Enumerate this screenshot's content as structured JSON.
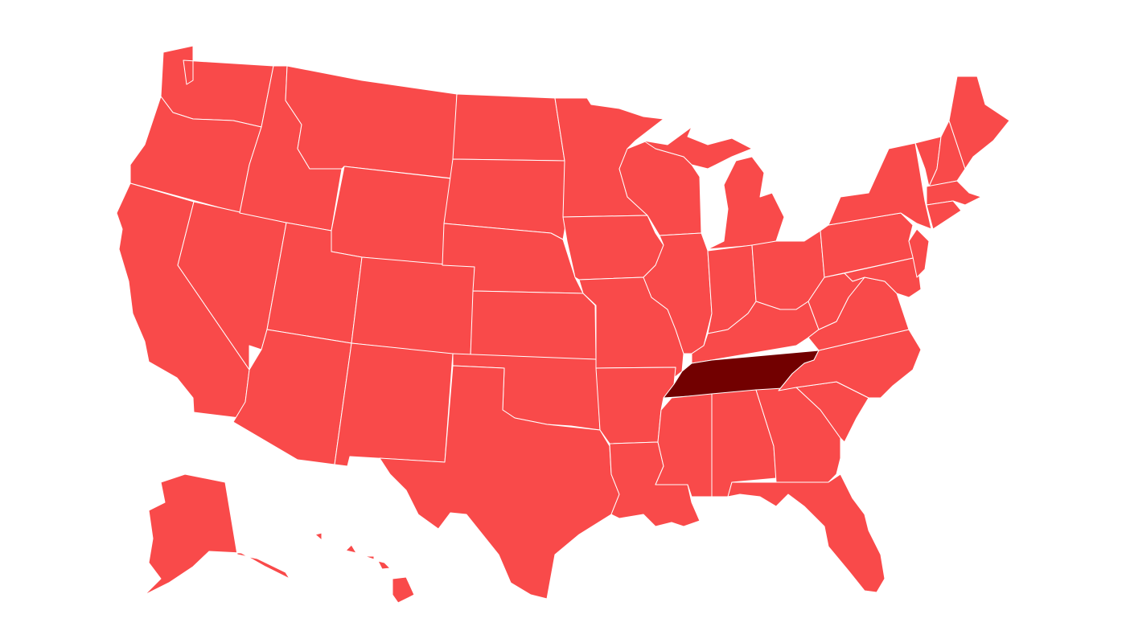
{
  "map": {
    "type": "choropleth",
    "region": "United States",
    "colors": {
      "default": "#f94a4a",
      "highlight": "#720000",
      "border": "#ffffff",
      "background": "#ffffff"
    },
    "highlighted_states": [
      "TN"
    ]
  }
}
